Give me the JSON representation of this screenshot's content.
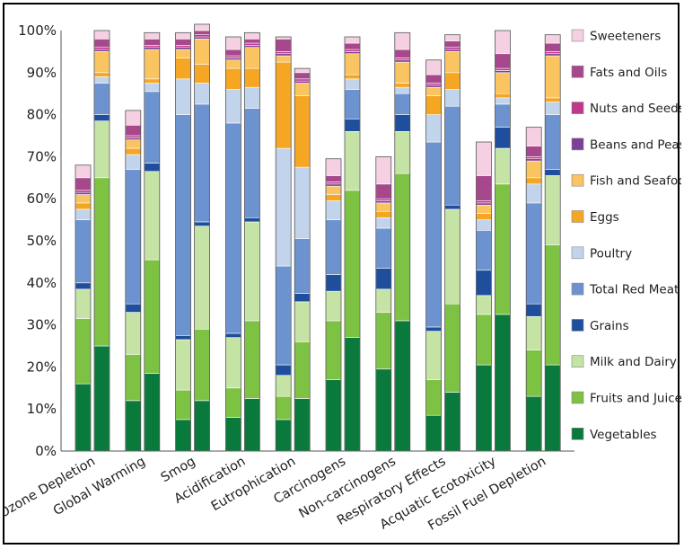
{
  "chart_data": {
    "type": "bar",
    "stacked": true,
    "title": "",
    "xlabel": "",
    "ylabel": "",
    "ylim": [
      0,
      100
    ],
    "yticks": [
      "0%",
      "10%",
      "20%",
      "30%",
      "40%",
      "50%",
      "60%",
      "70%",
      "80%",
      "90%",
      "100%"
    ],
    "grid": false,
    "legend_position": "right",
    "categories": [
      "Ozone Depletion",
      "Global Warming",
      "Smog",
      "Acidification",
      "Eutrophication",
      "Carcinogens",
      "Non-carcinogens",
      "Respiratory Effects",
      "Acquatic Ecotoxicity",
      "Fossil Fuel Depletion"
    ],
    "bars_per_category": 2,
    "series": [
      {
        "name": "Vegetables",
        "color": "#0a7a3c",
        "values": [
          [
            16,
            25
          ],
          [
            12,
            18.5
          ],
          [
            7.5,
            12
          ],
          [
            8,
            12.5
          ],
          [
            7.5,
            12.5
          ],
          [
            17,
            27
          ],
          [
            19.5,
            31
          ],
          [
            8.5,
            14
          ],
          [
            20.5,
            32.5
          ],
          [
            13,
            20.5
          ]
        ]
      },
      {
        "name": "Fruits and Juice",
        "color": "#7dc242",
        "values": [
          [
            15.5,
            40
          ],
          [
            11,
            27
          ],
          [
            7,
            17
          ],
          [
            7,
            18.5
          ],
          [
            5.5,
            13.5
          ],
          [
            14,
            35
          ],
          [
            13.5,
            35
          ],
          [
            8.5,
            21
          ],
          [
            12,
            31
          ],
          [
            11,
            28.5
          ]
        ]
      },
      {
        "name": "Milk and Dairy",
        "color": "#c5e3a5",
        "values": [
          [
            7,
            13.5
          ],
          [
            10,
            21
          ],
          [
            12,
            24.5
          ],
          [
            12,
            23.5
          ],
          [
            5,
            9.5
          ],
          [
            7,
            14
          ],
          [
            5.5,
            10
          ],
          [
            11.5,
            22.5
          ],
          [
            4.5,
            8.5
          ],
          [
            8,
            16.5
          ]
        ]
      },
      {
        "name": "Grains",
        "color": "#1f4e9c",
        "values": [
          [
            1.5,
            1.5
          ],
          [
            2,
            2
          ],
          [
            1,
            1
          ],
          [
            1,
            1
          ],
          [
            2.5,
            2
          ],
          [
            4,
            3
          ],
          [
            5,
            4
          ],
          [
            1,
            1
          ],
          [
            6,
            5
          ],
          [
            3,
            1.5
          ]
        ]
      },
      {
        "name": "Total Red Meat",
        "color": "#6c93cf",
        "values": [
          [
            15,
            7.5
          ],
          [
            32,
            17
          ],
          [
            52.5,
            28
          ],
          [
            50,
            26
          ],
          [
            23.5,
            13
          ],
          [
            13,
            7
          ],
          [
            9.5,
            5
          ],
          [
            44,
            23.5
          ],
          [
            9.5,
            5.5
          ],
          [
            24,
            13
          ]
        ]
      },
      {
        "name": "Poultry",
        "color": "#c2d3ec",
        "values": [
          [
            2.5,
            1.5
          ],
          [
            3.5,
            2
          ],
          [
            8.5,
            5
          ],
          [
            8,
            5
          ],
          [
            28,
            17
          ],
          [
            4.5,
            2.5
          ],
          [
            2.5,
            1.5
          ],
          [
            6.5,
            4
          ],
          [
            2.5,
            1.5
          ],
          [
            4.5,
            3
          ]
        ]
      },
      {
        "name": "Eggs",
        "color": "#f5a623",
        "values": [
          [
            1.5,
            1
          ],
          [
            1.5,
            1
          ],
          [
            5,
            4.5
          ],
          [
            5,
            4.5
          ],
          [
            20.5,
            17
          ],
          [
            1.5,
            1
          ],
          [
            1.5,
            1
          ],
          [
            4.5,
            4
          ],
          [
            1.5,
            1
          ],
          [
            1.5,
            1
          ]
        ]
      },
      {
        "name": "Fish and Seafood",
        "color": "#fac460",
        "values": [
          [
            2,
            5
          ],
          [
            2,
            7
          ],
          [
            2,
            6
          ],
          [
            2,
            5
          ],
          [
            1.5,
            3
          ],
          [
            2,
            5
          ],
          [
            2,
            5
          ],
          [
            2,
            5
          ],
          [
            2,
            5
          ],
          [
            4,
            10
          ]
        ]
      },
      {
        "name": "Beans and Peas",
        "color": "#7b3f98",
        "values": [
          [
            0.5,
            0.5
          ],
          [
            0.5,
            0.5
          ],
          [
            0.5,
            0.5
          ],
          [
            0.5,
            0.5
          ],
          [
            0.5,
            0.5
          ],
          [
            0.5,
            0.5
          ],
          [
            0.5,
            0.5
          ],
          [
            0.5,
            0.5
          ],
          [
            0.5,
            0.5
          ],
          [
            0.5,
            0.5
          ]
        ]
      },
      {
        "name": "Nuts and Seeds",
        "color": "#c2378e",
        "values": [
          [
            0.5,
            0.5
          ],
          [
            0.5,
            0.5
          ],
          [
            0.5,
            0.5
          ],
          [
            0.5,
            0.5
          ],
          [
            0.5,
            0.5
          ],
          [
            0.5,
            0.5
          ],
          [
            0.5,
            0.5
          ],
          [
            0.5,
            0.5
          ],
          [
            0.5,
            0.5
          ],
          [
            0.5,
            0.5
          ]
        ]
      },
      {
        "name": "Fats and Oils",
        "color": "#a7488c",
        "values": [
          [
            3,
            2
          ],
          [
            2.5,
            1.5
          ],
          [
            1.5,
            1
          ],
          [
            1.5,
            1
          ],
          [
            3,
            1.5
          ],
          [
            1.5,
            1.5
          ],
          [
            3.5,
            2
          ],
          [
            2,
            1.5
          ],
          [
            6,
            3.5
          ],
          [
            2.5,
            2
          ]
        ]
      },
      {
        "name": "Sweeteners",
        "color": "#f5d0e2",
        "values": [
          [
            3,
            2
          ],
          [
            3.5,
            1.5
          ],
          [
            1.5,
            1.5
          ],
          [
            3,
            1.5
          ],
          [
            0.5,
            1
          ],
          [
            4,
            1.5
          ],
          [
            6.5,
            4
          ],
          [
            3.5,
            1.5
          ],
          [
            8,
            5.5
          ],
          [
            4.5,
            2
          ]
        ]
      }
    ]
  }
}
